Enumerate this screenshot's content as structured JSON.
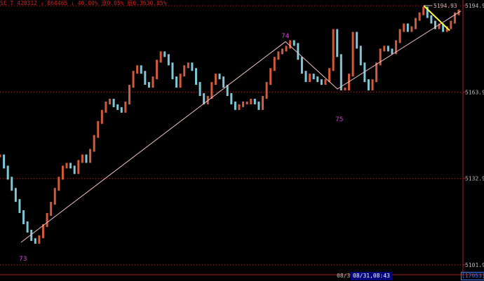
{
  "header_text": "SE T 428312 ↓ 860465 ↓ 40.00% 涨0.05% 振0.3630.05%",
  "colors": {
    "background": "#000000",
    "up": "#d05a3a",
    "down": "#7fc6d6",
    "trendline": "#f2c2c8",
    "highlight": "#ffff44",
    "grid": "#aa2020",
    "axis": "#aa2020",
    "label": "#cc44cc",
    "price_text": "#bbbbbb"
  },
  "footer": {
    "date": "08/31",
    "datetime": "08/31,08:43",
    "corner": "[17053]"
  },
  "chart_data": {
    "type": "line",
    "ylim": [
      5101.9,
      5194.93
    ],
    "yticks": [
      "5194.9",
      "5163.9",
      "5132.9",
      "5101.9"
    ],
    "ytick_values": [
      5194.9,
      5163.9,
      5132.9,
      5101.9
    ],
    "annotation_price": "5194.93",
    "annotation_value": 5194.93,
    "pivots": [
      {
        "label": "73",
        "index": 0,
        "value": 5110
      },
      {
        "label": "74",
        "index": 1,
        "value": 5182
      },
      {
        "label": "75",
        "index": 2,
        "value": 5165
      }
    ],
    "series": [
      {
        "values": [
          5141,
          5137,
          5133,
          5129,
          5125,
          5121,
          5117,
          5114,
          5111,
          5110,
          5112,
          5116,
          5120,
          5124,
          5129,
          5133,
          5137,
          5138,
          5137,
          5135,
          5139,
          5141,
          5139,
          5143,
          5148,
          5153,
          5157,
          5160,
          5161,
          5159,
          5158,
          5157,
          5160,
          5166,
          5171,
          5173,
          5171,
          5167,
          5166,
          5169,
          5175,
          5178,
          5177,
          5174,
          5169,
          5166,
          5170,
          5173,
          5174,
          5172,
          5167,
          5163,
          5160,
          5162,
          5167,
          5170,
          5169,
          5166,
          5163,
          5160,
          5158,
          5159,
          5160,
          5160,
          5161,
          5160,
          5158,
          5162,
          5167,
          5172,
          5176,
          5178,
          5179,
          5180,
          5182,
          5181,
          5176,
          5171,
          5168,
          5170,
          5169,
          5168,
          5167,
          5168,
          5172,
          5186,
          5177,
          5165,
          5165,
          5170,
          5185,
          5180,
          5174,
          5168,
          5165,
          5168,
          5174,
          5179,
          5180,
          5179,
          5178,
          5182,
          5186,
          5188,
          5186,
          5187,
          5190,
          5192,
          5194,
          5191,
          5189,
          5187,
          5188,
          5186,
          5187,
          5189,
          5192,
          5193
        ]
      }
    ]
  }
}
